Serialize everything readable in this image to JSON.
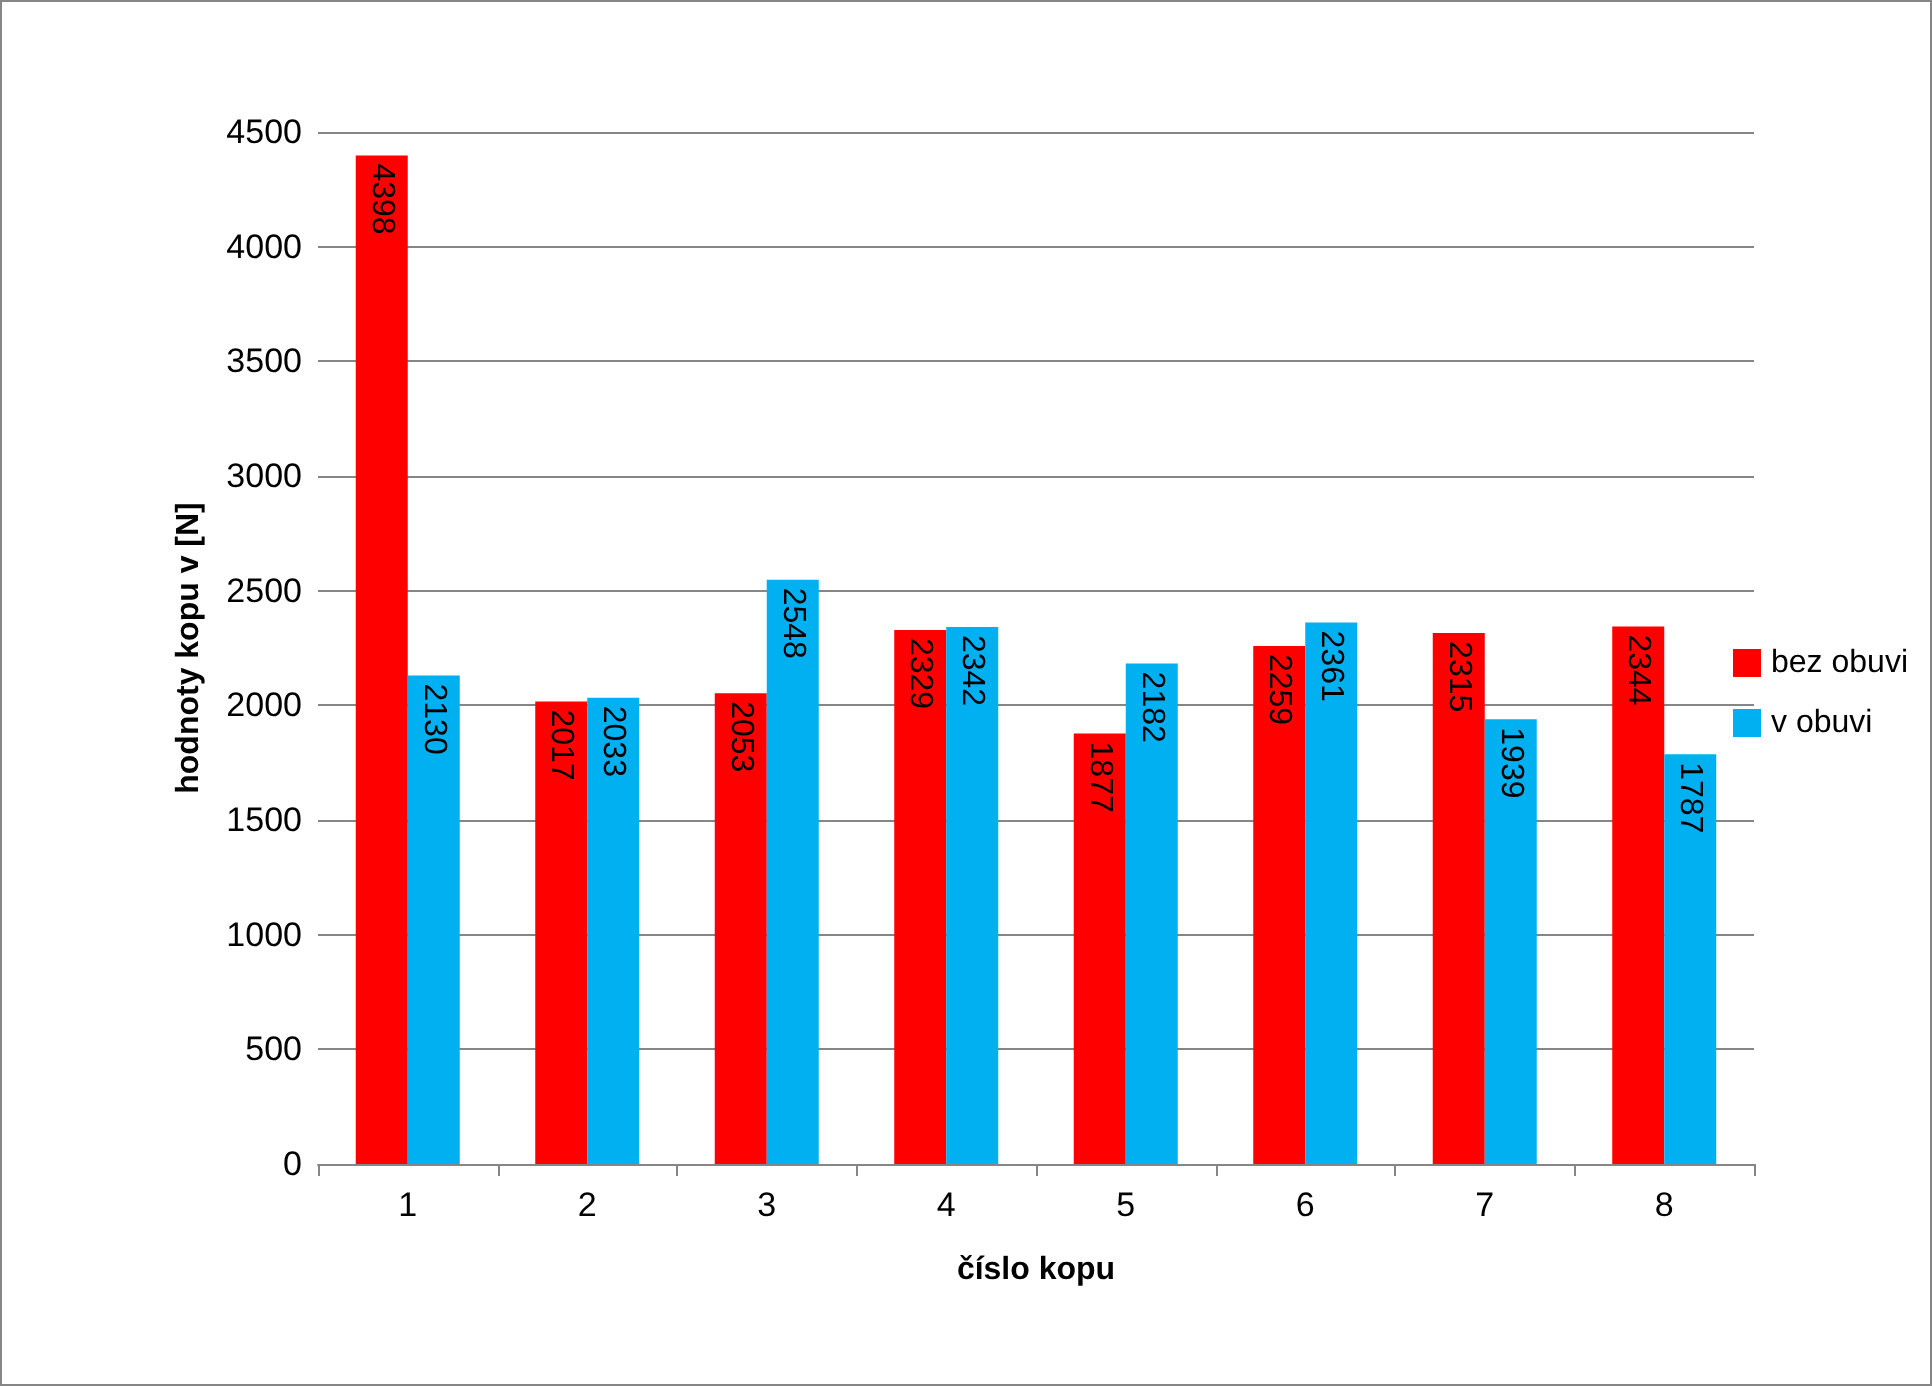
{
  "chart_data": {
    "type": "bar",
    "xlabel": "číslo kopu",
    "ylabel": "hodnoty kopu v [N]",
    "categories": [
      "1",
      "2",
      "3",
      "4",
      "5",
      "6",
      "7",
      "8"
    ],
    "series": [
      {
        "name": "bez obuvi",
        "color": "#ff0000",
        "values": [
          4398,
          2017,
          2053,
          2329,
          1877,
          2259,
          2315,
          2344
        ]
      },
      {
        "name": "v obuvi",
        "color": "#00b0f0",
        "values": [
          2130,
          2033,
          2548,
          2342,
          2182,
          2361,
          1939,
          1787
        ]
      }
    ],
    "ylim": [
      0,
      4500
    ],
    "yticks": [
      0,
      500,
      1000,
      1500,
      2000,
      2500,
      3000,
      3500,
      4000,
      4500
    ],
    "grid": "y",
    "legend": "right",
    "data_labels": true
  }
}
